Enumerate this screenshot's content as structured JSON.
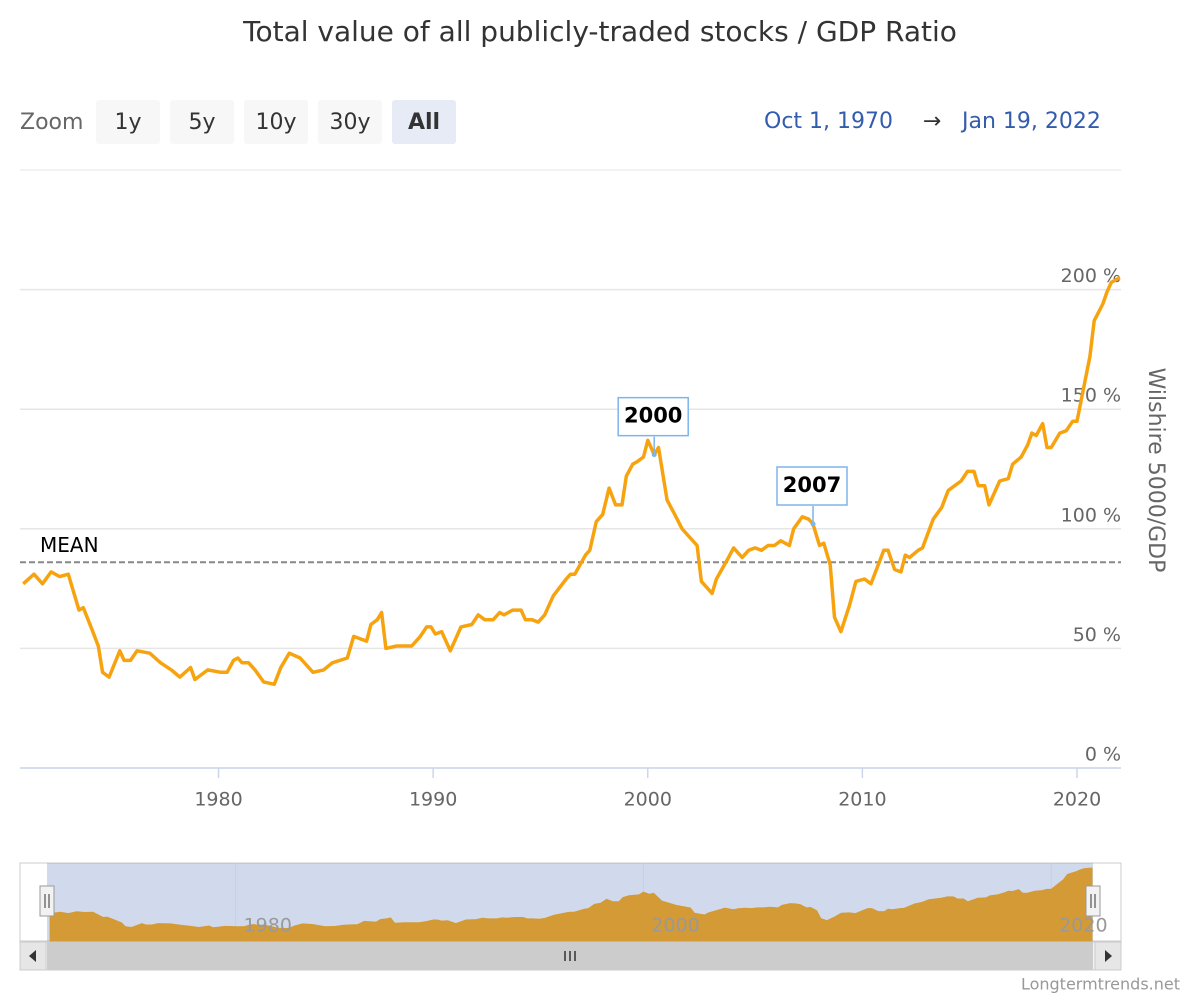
{
  "chart_data": {
    "type": "line",
    "title": "Total value of all publicly-traded stocks / GDP Ratio",
    "zoom_label": "Zoom",
    "zoom_buttons": [
      "1y",
      "5y",
      "10y",
      "30y",
      "All"
    ],
    "selected_zoom_index": 4,
    "range_from": "Oct 1, 1970",
    "range_arrow": "→",
    "range_to": "Jan 19, 2022",
    "y_axis_label": "Wilshire 5000/GDP",
    "color": "#f7a30f",
    "x": [
      1970.9,
      1971.4,
      1971.8,
      1972.2,
      1972.6,
      1973.0,
      1973.5,
      1973.7,
      1974.1,
      1974.4,
      1974.6,
      1974.9,
      1975.4,
      1975.6,
      1975.9,
      1976.2,
      1976.8,
      1977.3,
      1977.8,
      1978.2,
      1978.7,
      1978.9,
      1979.5,
      1980.1,
      1980.4,
      1980.7,
      1980.9,
      1981.1,
      1981.4,
      1981.7,
      1982.1,
      1982.6,
      1982.9,
      1983.3,
      1983.8,
      1984.4,
      1984.9,
      1985.3,
      1986.0,
      1986.3,
      1986.9,
      1987.1,
      1987.4,
      1987.6,
      1987.8,
      1988.3,
      1989.0,
      1989.4,
      1989.7,
      1989.9,
      1990.1,
      1990.4,
      1990.8,
      1991.3,
      1991.8,
      1992.1,
      1992.4,
      1992.8,
      1993.1,
      1993.3,
      1993.7,
      1994.1,
      1994.3,
      1994.6,
      1994.9,
      1995.2,
      1995.6,
      1996.2,
      1996.4,
      1996.6,
      1997.1,
      1997.3,
      1997.6,
      1997.9,
      1998.2,
      1998.5,
      1998.8,
      1999.0,
      1999.3,
      1999.5,
      1999.8,
      2000.0,
      2000.3,
      2000.5,
      2000.9,
      2001.2,
      2001.6,
      2001.9,
      2002.3,
      2002.5,
      2003.0,
      2003.2,
      2003.7,
      2004.0,
      2004.4,
      2004.7,
      2005.0,
      2005.3,
      2005.6,
      2005.9,
      2006.2,
      2006.6,
      2006.8,
      2007.2,
      2007.5,
      2007.7,
      2008.0,
      2008.2,
      2008.5,
      2008.7,
      2009.0,
      2009.4,
      2009.7,
      2010.1,
      2010.4,
      2011.0,
      2011.2,
      2011.5,
      2011.8,
      2012.0,
      2012.2,
      2012.6,
      2012.8,
      2013.3,
      2013.7,
      2014.0,
      2014.3,
      2014.6,
      2014.9,
      2015.2,
      2015.4,
      2015.7,
      2015.9,
      2016.2,
      2016.4,
      2016.8,
      2017.0,
      2017.4,
      2017.7,
      2017.9,
      2018.1,
      2018.4,
      2018.6,
      2018.8,
      2019.2,
      2019.5,
      2019.8,
      2020.0,
      2020.2,
      2020.6,
      2020.8,
      2021.2,
      2021.4,
      2021.6,
      2022.0
    ],
    "values": [
      77,
      81,
      77,
      82,
      80,
      81,
      66,
      67,
      58,
      51,
      40,
      38,
      49,
      45,
      45,
      49,
      48,
      44,
      41,
      38,
      42,
      37,
      41,
      40,
      40,
      45,
      46,
      44,
      44,
      41,
      36,
      35,
      42,
      48,
      46,
      40,
      41,
      44,
      46,
      55,
      53,
      60,
      62,
      65,
      50,
      51,
      51,
      55,
      59,
      59,
      56,
      57,
      49,
      59,
      60,
      64,
      62,
      62,
      65,
      64,
      66,
      66,
      62,
      62,
      61,
      64,
      72,
      79,
      81,
      81,
      89,
      91,
      103,
      106,
      117,
      110,
      110,
      122,
      127,
      128,
      130,
      137,
      131,
      134,
      112,
      107,
      100,
      97,
      93,
      78,
      73,
      79,
      87,
      92,
      88,
      91,
      92,
      91,
      93,
      93,
      95,
      93,
      100,
      105,
      104,
      102,
      93,
      94,
      85,
      63,
      57,
      68,
      78,
      79,
      77,
      91,
      91,
      83,
      82,
      89,
      88,
      91,
      92,
      104,
      109,
      116,
      118,
      120,
      124,
      124,
      118,
      118,
      110,
      116,
      120,
      121,
      127,
      130,
      135,
      140,
      139,
      144,
      134,
      134,
      140,
      141,
      145,
      145,
      154,
      172,
      187,
      194,
      199,
      203,
      205
    ],
    "xlim": [
      1970.75,
      2022.05
    ],
    "xticks": [
      1980,
      1990,
      2000,
      2010,
      2020
    ],
    "ylim": [
      0,
      250
    ],
    "yticks": [
      {
        "value": 0,
        "label": "0 %"
      },
      {
        "value": 50,
        "label": "50 %"
      },
      {
        "value": 100,
        "label": "100 %"
      },
      {
        "value": 150,
        "label": "150 %"
      },
      {
        "value": 200,
        "label": "200 %"
      }
    ],
    "grid": true,
    "mean": {
      "label": "MEAN",
      "value": 86
    },
    "annotations": [
      {
        "label": "2000",
        "x": 2000.3,
        "value": 131
      },
      {
        "label": "2007",
        "x": 2007.7,
        "value": 102
      }
    ],
    "navigator": {
      "xticks": [
        1980,
        2000,
        2020
      ],
      "color": "#d39a35"
    },
    "credit": "Longtermtrends.net"
  }
}
